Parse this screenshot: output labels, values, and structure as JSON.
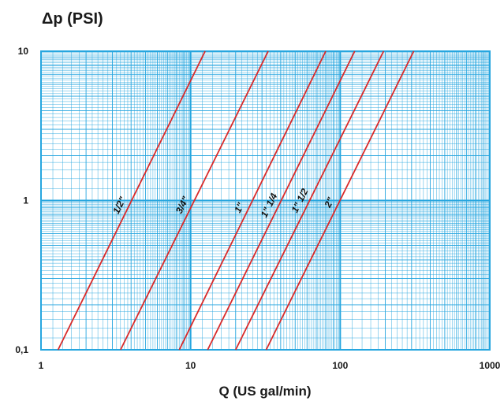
{
  "chart_data": {
    "type": "line",
    "ylabel": "Δp (PSI)",
    "xlabel": "Q (US gal/min)",
    "x_scale": "log",
    "y_scale": "log",
    "xlim": [
      1,
      1000
    ],
    "ylim": [
      0.1,
      10
    ],
    "x_ticks": [
      {
        "value": 1,
        "label": "1"
      },
      {
        "value": 10,
        "label": "10"
      },
      {
        "value": 100,
        "label": "100"
      },
      {
        "value": 1000,
        "label": "1000"
      }
    ],
    "y_ticks": [
      {
        "value": 0.1,
        "label": "0,1"
      },
      {
        "value": 1,
        "label": "1"
      },
      {
        "value": 10,
        "label": "10"
      }
    ],
    "grid": true,
    "series": [
      {
        "name": "1/2\"",
        "points": [
          [
            1.3,
            0.1
          ],
          [
            12.5,
            10
          ]
        ],
        "label_at": 3.8
      },
      {
        "name": "3/4\"",
        "points": [
          [
            3.4,
            0.1
          ],
          [
            33,
            10
          ]
        ],
        "label_at": 10
      },
      {
        "name": "1\"",
        "points": [
          [
            8.4,
            0.1
          ],
          [
            80,
            10
          ]
        ],
        "label_at": 24
      },
      {
        "name": "1\" 1/4",
        "points": [
          [
            13,
            0.1
          ],
          [
            125,
            10
          ]
        ],
        "label_at": 38
      },
      {
        "name": "1\" 1/2",
        "points": [
          [
            20,
            0.1
          ],
          [
            195,
            10
          ]
        ],
        "label_at": 61
      },
      {
        "name": "2\"",
        "points": [
          [
            32,
            0.1
          ],
          [
            310,
            10
          ]
        ],
        "label_at": 96
      }
    ],
    "colors": {
      "grid": "#27a6df",
      "line": "#d82a2a",
      "text": "#1a1a1a"
    }
  }
}
